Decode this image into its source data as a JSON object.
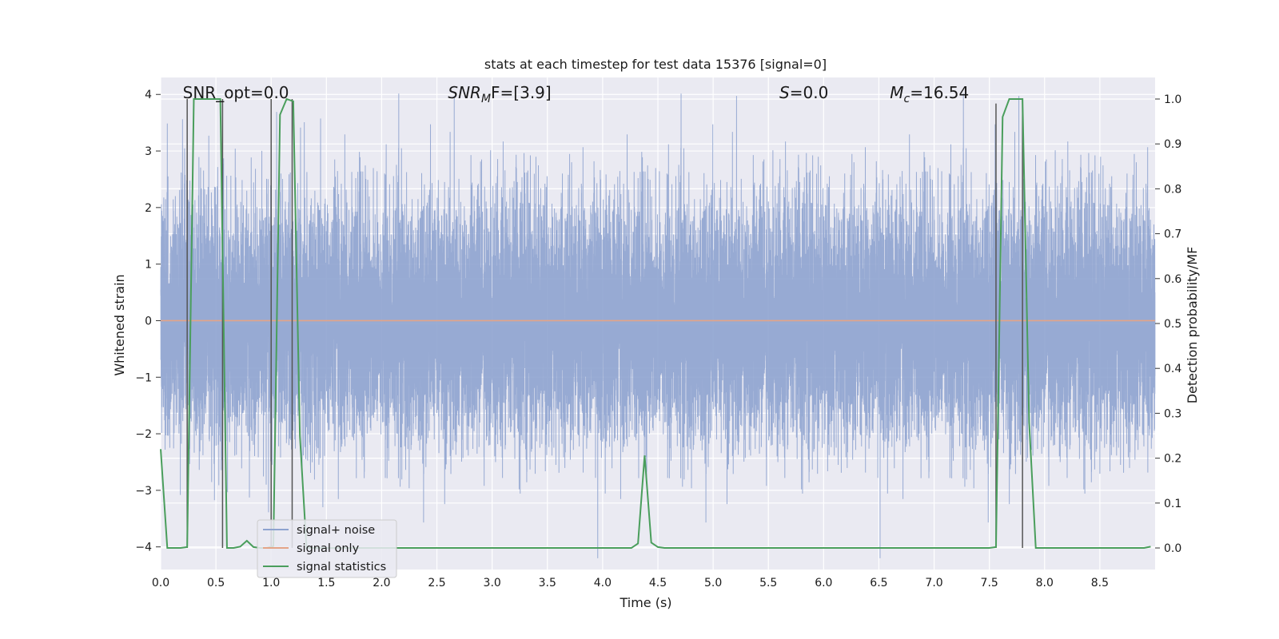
{
  "chart_data": {
    "type": "line",
    "title": "stats at each timestep for test data 15376 [signal=0]",
    "xlabel": "Time (s)",
    "ylabel_left": "Whitened strain",
    "ylabel_right": "Detection probability/MF",
    "xlim": [
      0.0,
      9.0
    ],
    "ylim_left": [
      -4.4,
      4.3
    ],
    "ylim_right": [
      -0.048,
      1.048
    ],
    "x_ticks": [
      "0.0",
      "0.5",
      "1.0",
      "1.5",
      "2.0",
      "2.5",
      "3.0",
      "3.5",
      "4.0",
      "4.5",
      "5.0",
      "5.5",
      "6.0",
      "6.5",
      "7.0",
      "7.5",
      "8.0",
      "8.5"
    ],
    "y_ticks_left": [
      "−4",
      "−3",
      "−2",
      "−1",
      "0",
      "1",
      "2",
      "3",
      "4"
    ],
    "y_ticks_right": [
      "0.0",
      "0.1",
      "0.2",
      "0.3",
      "0.4",
      "0.5",
      "0.6",
      "0.7",
      "0.8",
      "0.9",
      "1.0"
    ],
    "grid": true,
    "legend_placement": "lower-left",
    "annotations": [
      {
        "text": "SNR_opt=0.0",
        "x": 0.2
      },
      {
        "prefix": "SNR",
        "sub": "M",
        "suffix": "F=[3.9]",
        "x": 2.6
      },
      {
        "prefix": "S",
        "sub": "",
        "suffix": "=0.0",
        "x": 5.6
      },
      {
        "prefix": "M",
        "sub": "c",
        "suffix": "=16.54",
        "x": 6.6
      }
    ],
    "series": [
      {
        "name": "signal+ noise",
        "color": "#8ea3cf",
        "axis": "left",
        "description_type": "noise",
        "duration_s": 9.0,
        "sample_rate_hz": 2048,
        "std": 1.05
      },
      {
        "name": "signal only",
        "color": "#e4a487",
        "axis": "left",
        "x": [
          0.0,
          9.0
        ],
        "y": [
          0.0,
          0.0
        ]
      },
      {
        "name": "signal statistics",
        "color": "#4a9e5c",
        "axis": "right",
        "x": [
          0.0,
          0.06,
          0.12,
          0.18,
          0.24,
          0.3,
          0.36,
          0.42,
          0.48,
          0.54,
          0.6,
          0.66,
          0.72,
          0.78,
          0.84,
          0.9,
          0.96,
          1.02,
          1.08,
          1.14,
          1.2,
          1.26,
          1.32,
          1.38,
          1.44,
          1.5,
          4.2,
          4.26,
          4.32,
          4.38,
          4.44,
          4.5,
          4.56,
          4.62,
          7.5,
          7.56,
          7.62,
          7.68,
          7.74,
          7.8,
          7.86,
          7.92,
          7.98,
          8.04,
          8.9,
          8.96
        ],
        "y": [
          0.22,
          0.0,
          0.0,
          0.0,
          0.002,
          1.0,
          1.0,
          1.0,
          1.0,
          1.0,
          0.0,
          0.0,
          0.003,
          0.016,
          0.002,
          0.0,
          0.0,
          0.004,
          0.965,
          1.0,
          0.995,
          0.25,
          0.0,
          0.0,
          0.0,
          0.0,
          0.0,
          0.0,
          0.01,
          0.206,
          0.012,
          0.002,
          0.0,
          0.0,
          0.0,
          0.002,
          0.96,
          1.0,
          1.0,
          1.0,
          0.28,
          0.0,
          0.0,
          0.0,
          0.0,
          0.003
        ]
      }
    ],
    "vertical_markers": [
      {
        "x": 0.24,
        "y_right": [
          0.0,
          1.0
        ]
      },
      {
        "x": 0.56,
        "y_right": [
          0.0,
          1.0
        ]
      },
      {
        "x": 1.0,
        "y_right": [
          0.0,
          1.0
        ]
      },
      {
        "x": 1.19,
        "y_right": [
          0.0,
          1.0
        ]
      },
      {
        "x": 7.56,
        "y_right": [
          0.0,
          0.99
        ]
      },
      {
        "x": 7.8,
        "y_right": [
          0.0,
          1.0
        ]
      }
    ]
  }
}
